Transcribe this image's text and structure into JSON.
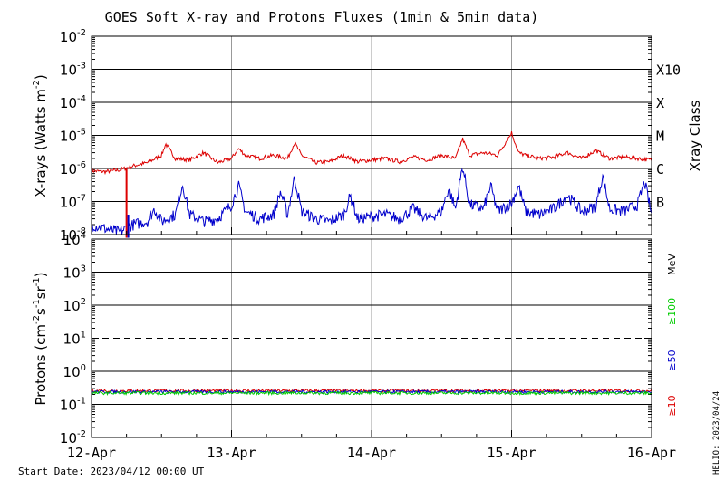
{
  "title": "GOES Soft X-ray and Protons Fluxes   (1min & 5min data)",
  "start_date": "Start Date: 2023/04/12 00:00 UT",
  "helio_stamp": "HELIO: 2023/04/24",
  "colors": {
    "xray_long": "#dd0000",
    "xray_short": "#0000cc",
    "p10": "#dd0000",
    "p50": "#0000cc",
    "p100": "#00cc00",
    "grid": "#000000",
    "day_lines": "#999999"
  },
  "chart_data": [
    {
      "type": "line",
      "panel": "xrays",
      "ylabel_base": "X-rays (Watts m",
      "ylabel_exp": "-2",
      "ylabel_tail": ")",
      "y_scale": "log",
      "ylim": [
        1e-08,
        0.01
      ],
      "yticks": [
        {
          "base": "10",
          "exp": "-2"
        },
        {
          "base": "10",
          "exp": "-3"
        },
        {
          "base": "10",
          "exp": "-4"
        },
        {
          "base": "10",
          "exp": "-5"
        },
        {
          "base": "10",
          "exp": "-6"
        },
        {
          "base": "10",
          "exp": "-7"
        },
        {
          "base": "10",
          "exp": "-8"
        }
      ],
      "right_axis_label": "Xray Class",
      "classes": [
        {
          "label": "X10",
          "value": 0.001
        },
        {
          "label": "X",
          "value": 0.0001
        },
        {
          "label": "M",
          "value": 1e-05
        },
        {
          "label": "C",
          "value": 1e-06
        },
        {
          "label": "B",
          "value": 1e-07
        }
      ],
      "x_categories": [
        "12-Apr",
        "13-Apr",
        "14-Apr",
        "15-Apr",
        "16-Apr"
      ],
      "xlim_days": [
        0,
        4
      ],
      "series": [
        {
          "color": "#dd0000",
          "points": [
            [
              0,
              8.5e-07
            ],
            [
              0.1,
              8e-07
            ],
            [
              0.2,
              9e-07
            ],
            [
              0.3,
              1.2e-06
            ],
            [
              0.4,
              1.5e-06
            ],
            [
              0.5,
              2.5e-06
            ],
            [
              0.53,
              5.5e-06
            ],
            [
              0.6,
              2e-06
            ],
            [
              0.7,
              1.8e-06
            ],
            [
              0.8,
              3e-06
            ],
            [
              0.9,
              1.5e-06
            ],
            [
              1.0,
              2e-06
            ],
            [
              1.05,
              4e-06
            ],
            [
              1.1,
              2.5e-06
            ],
            [
              1.2,
              2e-06
            ],
            [
              1.3,
              2.5e-06
            ],
            [
              1.4,
              2e-06
            ],
            [
              1.45,
              6e-06
            ],
            [
              1.5,
              2.5e-06
            ],
            [
              1.6,
              1.5e-06
            ],
            [
              1.7,
              1.6e-06
            ],
            [
              1.8,
              2.5e-06
            ],
            [
              1.9,
              1.6e-06
            ],
            [
              2.0,
              1.8e-06
            ],
            [
              2.1,
              2e-06
            ],
            [
              2.2,
              1.6e-06
            ],
            [
              2.3,
              2.2e-06
            ],
            [
              2.4,
              1.8e-06
            ],
            [
              2.5,
              2.5e-06
            ],
            [
              2.6,
              2e-06
            ],
            [
              2.65,
              8e-06
            ],
            [
              2.7,
              2.5e-06
            ],
            [
              2.8,
              3e-06
            ],
            [
              2.9,
              2.5e-06
            ],
            [
              3.0,
              1.2e-05
            ],
            [
              3.05,
              3e-06
            ],
            [
              3.1,
              2.5e-06
            ],
            [
              3.2,
              2e-06
            ],
            [
              3.3,
              2.2e-06
            ],
            [
              3.4,
              3e-06
            ],
            [
              3.5,
              2e-06
            ],
            [
              3.6,
              3.5e-06
            ],
            [
              3.7,
              2e-06
            ],
            [
              3.8,
              2.2e-06
            ],
            [
              3.9,
              2e-06
            ],
            [
              4.0,
              1.8e-06
            ]
          ]
        },
        {
          "color": "#0000cc",
          "points": [
            [
              0,
              2e-08
            ],
            [
              0.1,
              1.5e-08
            ],
            [
              0.2,
              1.2e-08
            ],
            [
              0.3,
              2e-08
            ],
            [
              0.4,
              2.5e-08
            ],
            [
              0.45,
              6e-08
            ],
            [
              0.5,
              2.5e-08
            ],
            [
              0.6,
              4e-08
            ],
            [
              0.65,
              3.5e-07
            ],
            [
              0.7,
              4e-08
            ],
            [
              0.8,
              2.5e-08
            ],
            [
              0.9,
              3e-08
            ],
            [
              1.0,
              8e-08
            ],
            [
              1.05,
              3e-07
            ],
            [
              1.1,
              5e-08
            ],
            [
              1.2,
              3e-08
            ],
            [
              1.3,
              4e-08
            ],
            [
              1.35,
              2e-07
            ],
            [
              1.4,
              4e-08
            ],
            [
              1.45,
              5.5e-07
            ],
            [
              1.5,
              5e-08
            ],
            [
              1.6,
              3e-08
            ],
            [
              1.7,
              2.5e-08
            ],
            [
              1.8,
              4e-08
            ],
            [
              1.85,
              1.5e-07
            ],
            [
              1.9,
              3e-08
            ],
            [
              2.0,
              3.5e-08
            ],
            [
              2.1,
              4e-08
            ],
            [
              2.2,
              3e-08
            ],
            [
              2.3,
              6e-08
            ],
            [
              2.4,
              3e-08
            ],
            [
              2.5,
              5e-08
            ],
            [
              2.55,
              2.5e-07
            ],
            [
              2.6,
              6e-08
            ],
            [
              2.65,
              1.2e-06
            ],
            [
              2.7,
              8e-08
            ],
            [
              2.8,
              6e-08
            ],
            [
              2.85,
              3e-07
            ],
            [
              2.9,
              5e-08
            ],
            [
              3.0,
              9e-08
            ],
            [
              3.05,
              3e-07
            ],
            [
              3.1,
              5e-08
            ],
            [
              3.2,
              4e-08
            ],
            [
              3.3,
              6e-08
            ],
            [
              3.4,
              1.5e-07
            ],
            [
              3.5,
              5e-08
            ],
            [
              3.6,
              7e-08
            ],
            [
              3.65,
              6e-07
            ],
            [
              3.7,
              6e-08
            ],
            [
              3.8,
              5e-08
            ],
            [
              3.9,
              8e-08
            ],
            [
              3.95,
              4e-07
            ],
            [
              4.0,
              4e-08
            ]
          ]
        }
      ],
      "dropout": {
        "day": 0.25,
        "from": 1e-06,
        "to": 8e-09
      }
    },
    {
      "type": "line",
      "panel": "protons",
      "ylabel_base": "Protons (cm",
      "ylabel_exp_a": "-2",
      "ylabel_mid": "s",
      "ylabel_exp_b": "-1",
      "ylabel_mid2": "sr",
      "ylabel_exp_c": "-1",
      "ylabel_tail": ")",
      "y_scale": "log",
      "ylim": [
        0.01,
        10000
      ],
      "yticks": [
        {
          "base": "10",
          "exp": "4"
        },
        {
          "base": "10",
          "exp": "3"
        },
        {
          "base": "10",
          "exp": "2"
        },
        {
          "base": "10",
          "exp": "1"
        },
        {
          "base": "10",
          "exp": "0"
        },
        {
          "base": "10",
          "exp": "-1"
        },
        {
          "base": "10",
          "exp": "-2"
        }
      ],
      "threshold": 10,
      "energy_unit": "MeV",
      "series": [
        {
          "name": "≥10",
          "color": "#dd0000",
          "level": 0.26
        },
        {
          "name": "≥50",
          "color": "#0000cc",
          "level": 0.24
        },
        {
          "name": "≥100",
          "color": "#00cc00",
          "level": 0.22
        }
      ],
      "x_categories": [
        "12-Apr",
        "13-Apr",
        "14-Apr",
        "15-Apr",
        "16-Apr"
      ]
    }
  ]
}
